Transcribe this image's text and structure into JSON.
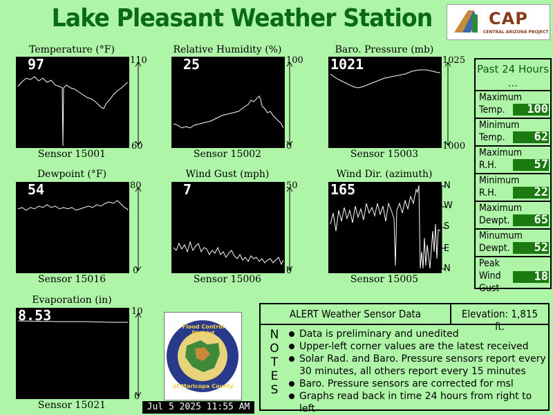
{
  "header": {
    "title": "Lake Pleasant Weather Station",
    "cap_logo": {
      "text": "CAP",
      "subtext": "CENTRAL ARIZONA PROJECT"
    }
  },
  "panels": {
    "temperature": {
      "title": "Temperature (°F)",
      "value": "97",
      "max": "110",
      "min": "60",
      "sensor": "Sensor 15001"
    },
    "humidity": {
      "title": "Relative Humidity (%)",
      "value": "25",
      "max": "100",
      "min": "0",
      "sensor": "Sensor 15002"
    },
    "pressure": {
      "title": "Baro. Pressure (mb)",
      "value": "1021",
      "max": "1025",
      "min": "1000",
      "sensor": "Sensor 15003"
    },
    "dewpoint": {
      "title": "Dewpoint (°F)",
      "value": "54",
      "max": "80",
      "min": "0",
      "sensor": "Sensor 15016"
    },
    "windgust": {
      "title": "Wind Gust (mph)",
      "value": "7",
      "max": "50",
      "min": "0",
      "sensor": "Sensor 15006"
    },
    "winddir": {
      "title": "Wind Dir. (azimuth)",
      "value": "165",
      "ticks": [
        "N",
        "W",
        "S",
        "E",
        "N"
      ],
      "sensor": "Sensor 15005"
    },
    "evaporation": {
      "title": "Evaporation (in)",
      "value": "8.53",
      "max": "10",
      "min": "0",
      "sensor": "Sensor 15021"
    }
  },
  "summary": {
    "heading": "Past 24 Hours ...",
    "rows": [
      {
        "label": "Maximum Temp.",
        "value": "100"
      },
      {
        "label": "Minimum Temp.",
        "value": "62"
      },
      {
        "label": "Maximum R.H.",
        "value": "57"
      },
      {
        "label": "Minimum R.H.",
        "value": "22"
      },
      {
        "label": "Maximum Dewpt.",
        "value": "65"
      },
      {
        "label": "Minumum Dewpt.",
        "value": "52"
      },
      {
        "label": "Peak Wind Gust",
        "value": "18"
      }
    ]
  },
  "notes": {
    "heading": "ALERT Weather Sensor Data",
    "elevation": "Elevation:  1,815 ft.",
    "vertical": [
      "N",
      "O",
      "T",
      "E",
      "S"
    ],
    "items": [
      "Data is preliminary and unedited",
      "Upper-left corner values are the latest received",
      "Solar Rad. and Baro. Pressure sensors report every 30 minutes, all others report every 15 minutes",
      "Baro. Pressure sensors are corrected for msl",
      "Graphs read back in time 24 hours from right to left"
    ]
  },
  "fcd_logo": {
    "top": "Flood Control District",
    "bottom": "of Maricopa County"
  },
  "timestamp": "Jul  5 2025 11:55 AM",
  "colors": {
    "background": "#aef5a8",
    "title": "#0a6b12",
    "value_box": "#1a7a10"
  }
}
